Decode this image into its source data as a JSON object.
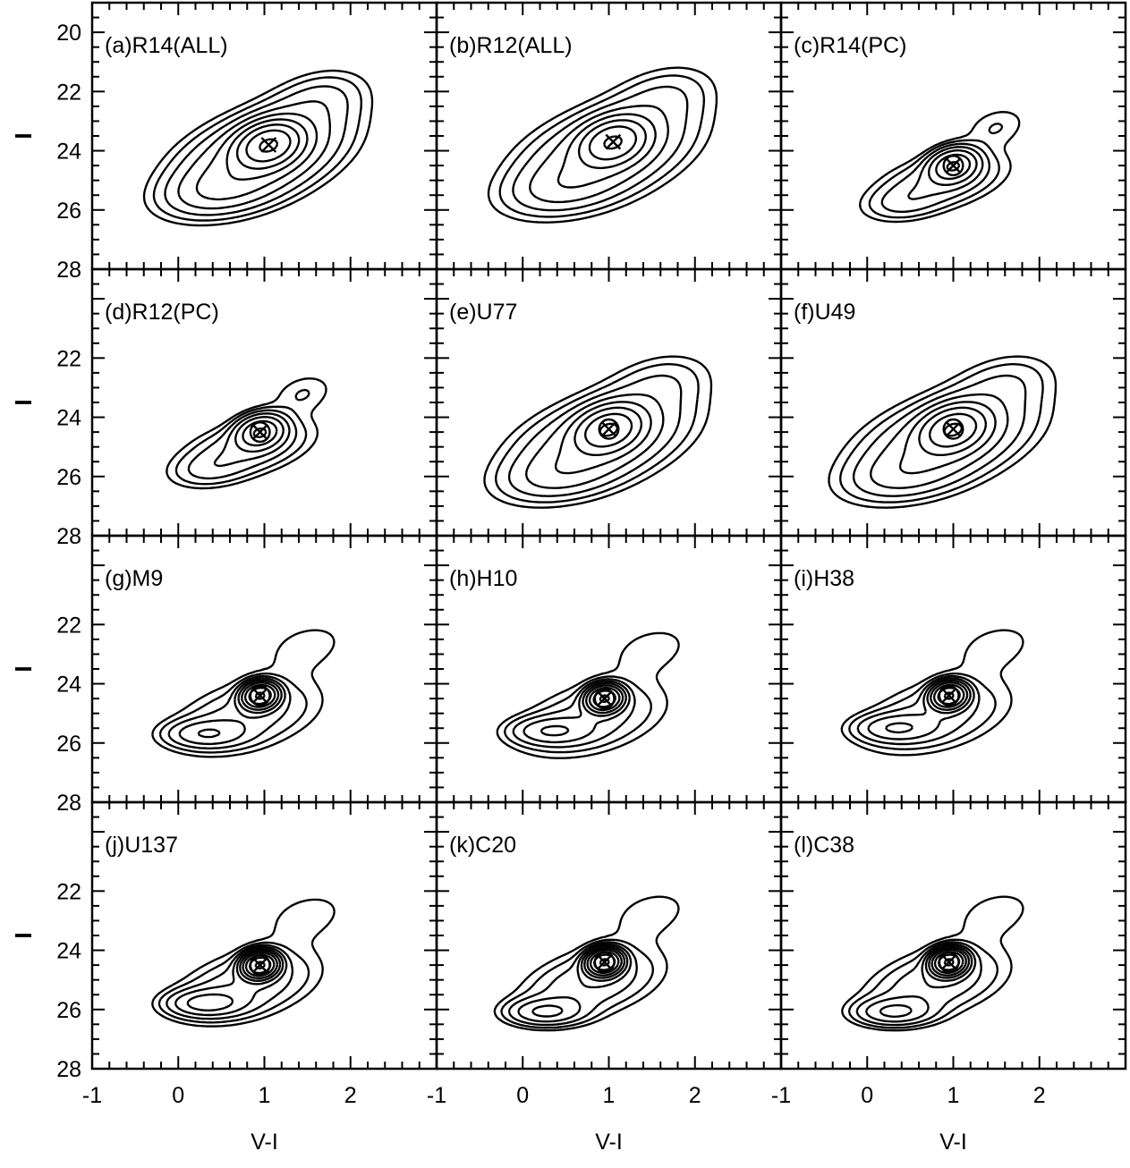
{
  "chart_data": {
    "type": "contour",
    "layout": "4 rows x 3 columns of panels, shared axes",
    "xlabel": "V-I",
    "ylabel": "I",
    "xlim": [
      -1,
      3
    ],
    "ylim": [
      28,
      19
    ],
    "y_axis_inverted": true,
    "x_ticks": [
      "-1",
      "0",
      "1",
      "2"
    ],
    "y_ticks": [
      "20",
      "22",
      "24",
      "26",
      "28"
    ],
    "x_minor_step": 0.2,
    "y_minor_step": 0.5,
    "grid": false,
    "legend": "none",
    "marker_symbol": "×",
    "panels": [
      {
        "label": "(a)R14(ALL)",
        "peak": [
          1.05,
          23.8
        ],
        "marker": "plain-x",
        "levels": 9,
        "spread": [
          0.78,
          1.25
        ],
        "tilt": -2.7,
        "shape": "broad"
      },
      {
        "label": "(b)R12(ALL)",
        "peak": [
          1.05,
          23.7
        ],
        "marker": "plain-x",
        "levels": 8,
        "spread": [
          0.78,
          1.25
        ],
        "tilt": -2.7,
        "shape": "broad"
      },
      {
        "label": "(c)R14(PC)",
        "peak": [
          1.0,
          24.5
        ],
        "marker": "circled-x",
        "levels": 7,
        "spread": [
          0.55,
          0.8
        ],
        "tilt": -2.4,
        "shape": "compact"
      },
      {
        "label": "(d)R12(PC)",
        "peak": [
          0.95,
          24.5
        ],
        "marker": "circled-x",
        "levels": 7,
        "spread": [
          0.55,
          0.8
        ],
        "tilt": -2.4,
        "shape": "compact"
      },
      {
        "label": "(e)U77",
        "peak": [
          1.0,
          24.4
        ],
        "marker": "circled-x",
        "levels": 8,
        "spread": [
          0.78,
          1.2
        ],
        "tilt": -2.7,
        "shape": "broad"
      },
      {
        "label": "(f)U49",
        "peak": [
          1.0,
          24.4
        ],
        "marker": "circled-x",
        "levels": 8,
        "spread": [
          0.78,
          1.2
        ],
        "tilt": -2.7,
        "shape": "broad"
      },
      {
        "label": "(g)M9",
        "peak": [
          0.95,
          24.4
        ],
        "marker": "circled-x",
        "levels": 9,
        "spread": [
          0.7,
          1.1
        ],
        "tilt": -2.5,
        "shape": "bimodal",
        "secondary_peak": [
          0.3,
          25.7
        ]
      },
      {
        "label": "(h)H10",
        "peak": [
          0.95,
          24.5
        ],
        "marker": "circled-x",
        "levels": 9,
        "spread": [
          0.7,
          1.1
        ],
        "tilt": -2.5,
        "shape": "bimodal",
        "secondary_peak": [
          0.3,
          25.6
        ]
      },
      {
        "label": "(i)H38",
        "peak": [
          0.95,
          24.4
        ],
        "marker": "circled-x",
        "levels": 9,
        "spread": [
          0.7,
          1.1
        ],
        "tilt": -2.5,
        "shape": "bimodal",
        "secondary_peak": [
          0.3,
          25.5
        ]
      },
      {
        "label": "(j)U137",
        "peak": [
          0.95,
          24.5
        ],
        "marker": "circled-x",
        "levels": 10,
        "spread": [
          0.7,
          1.1
        ],
        "tilt": -2.5,
        "shape": "bimodal",
        "secondary_peak": [
          0.3,
          25.8
        ]
      },
      {
        "label": "(k)C20",
        "peak": [
          0.95,
          24.4
        ],
        "marker": "circled-x",
        "levels": 10,
        "spread": [
          0.7,
          1.1
        ],
        "tilt": -2.5,
        "shape": "bimodal",
        "secondary_peak": [
          0.25,
          26.1
        ]
      },
      {
        "label": "(l)C38",
        "peak": [
          0.95,
          24.4
        ],
        "marker": "circled-x",
        "levels": 10,
        "spread": [
          0.7,
          1.1
        ],
        "tilt": -2.5,
        "shape": "bimodal",
        "secondary_peak": [
          0.3,
          26.1
        ]
      }
    ]
  }
}
